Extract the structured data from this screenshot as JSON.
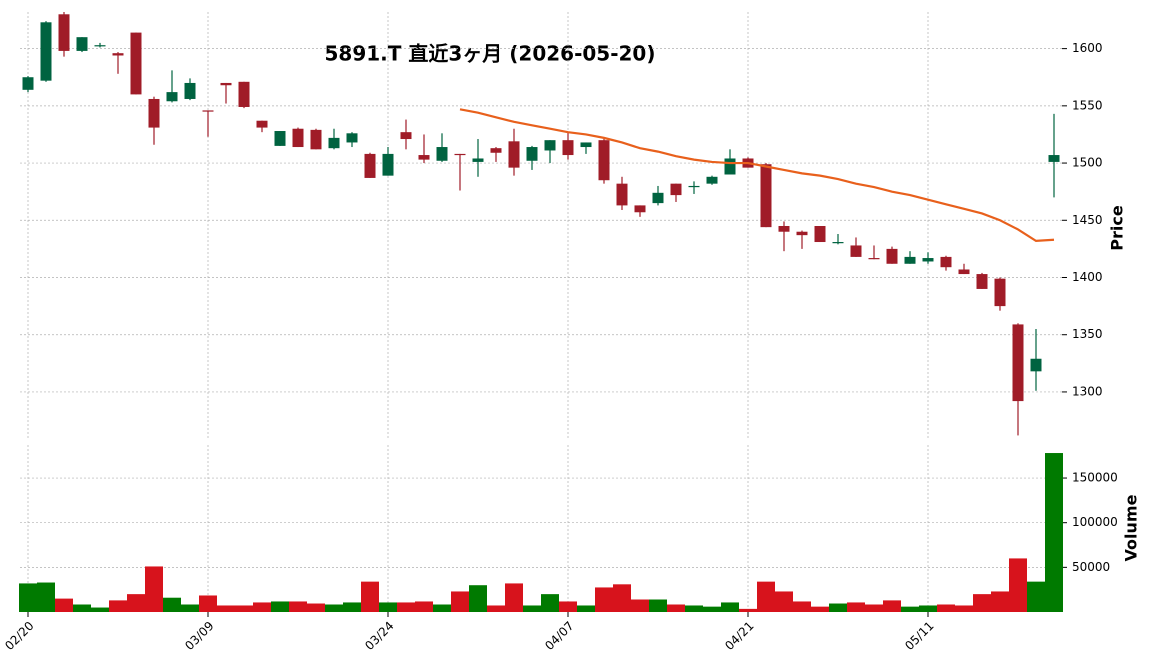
{
  "chart_data": {
    "type": "candlestick",
    "title": "5891.T  直近3ヶ月 (2026-05-20)",
    "ylabel": "Price",
    "volume_label": "Volume",
    "categories": [
      "02/20",
      null,
      null,
      null,
      null,
      null,
      null,
      null,
      null,
      null,
      "03/09",
      null,
      null,
      null,
      null,
      null,
      null,
      null,
      null,
      null,
      "03/24",
      null,
      null,
      null,
      null,
      null,
      null,
      null,
      null,
      null,
      "04/07",
      null,
      null,
      null,
      null,
      null,
      null,
      null,
      null,
      null,
      "04/21",
      null,
      null,
      null,
      null,
      null,
      null,
      null,
      null,
      null,
      "05/11",
      null,
      null,
      null,
      null,
      null,
      null,
      null
    ],
    "open": [
      1564,
      1572,
      1630,
      1598,
      1602,
      1596,
      1614,
      1556,
      1554,
      1556,
      1546,
      1570,
      1571,
      1537,
      1515,
      1530,
      1529,
      1513,
      1518,
      1508,
      1489,
      1527,
      1507,
      1502,
      1508,
      1501,
      1513,
      1519,
      1502,
      1511,
      1520,
      1514,
      1520,
      1482,
      1463,
      1465,
      1482,
      1479,
      1482,
      1490,
      1504,
      1499,
      1445,
      1440,
      1445,
      1430,
      1428,
      1417,
      1425,
      1412,
      1414,
      1418,
      1407,
      1403,
      1399,
      1359,
      1318,
      1501
    ],
    "high": [
      1576,
      1624,
      1632,
      1610,
      1605,
      1597,
      1614,
      1558,
      1581,
      1574,
      1546,
      1570,
      1571,
      1537,
      1528,
      1531,
      1530,
      1530,
      1527,
      1509,
      1514,
      1538,
      1525,
      1526,
      1508,
      1521,
      1514,
      1530,
      1515,
      1520,
      1527,
      1518,
      1521,
      1488,
      1463,
      1480,
      1482,
      1484,
      1489,
      1512,
      1505,
      1500,
      1449,
      1441,
      1445,
      1438,
      1435,
      1428,
      1427,
      1423,
      1422,
      1419,
      1412,
      1404,
      1400,
      1360,
      1355,
      1543
    ],
    "low": [
      1562,
      1571,
      1593,
      1597,
      1601,
      1578,
      1560,
      1516,
      1553,
      1555,
      1523,
      1552,
      1548,
      1527,
      1515,
      1514,
      1512,
      1512,
      1514,
      1487,
      1489,
      1512,
      1500,
      1501,
      1476,
      1488,
      1501,
      1489,
      1494,
      1500,
      1503,
      1508,
      1482,
      1459,
      1453,
      1463,
      1466,
      1473,
      1481,
      1490,
      1496,
      1444,
      1423,
      1425,
      1431,
      1429,
      1418,
      1416,
      1412,
      1412,
      1412,
      1406,
      1403,
      1390,
      1371,
      1262,
      1301,
      1470
    ],
    "close": [
      1575,
      1623,
      1598,
      1610,
      1603,
      1594,
      1560,
      1531,
      1562,
      1570,
      1545,
      1568,
      1549,
      1531,
      1528,
      1514,
      1512,
      1522,
      1526,
      1487,
      1508,
      1521,
      1503,
      1514,
      1507,
      1504,
      1509,
      1496,
      1514,
      1520,
      1507,
      1518,
      1485,
      1463,
      1457,
      1474,
      1472,
      1480,
      1488,
      1504,
      1496,
      1444,
      1440,
      1437,
      1431,
      1431,
      1418,
      1416,
      1412,
      1418,
      1417,
      1409,
      1403,
      1390,
      1375,
      1292,
      1329,
      1507
    ],
    "volume": [
      32000,
      33000,
      15000,
      8400,
      5000,
      13000,
      20000,
      51000,
      16000,
      8400,
      18500,
      7300,
      7300,
      10700,
      11800,
      11800,
      9500,
      8400,
      10700,
      34000,
      10700,
      10700,
      11800,
      8400,
      23000,
      30000,
      7300,
      32000,
      7300,
      20000,
      11800,
      7300,
      27500,
      31000,
      14000,
      14000,
      8400,
      7300,
      6000,
      10700,
      3500,
      34000,
      23000,
      11800,
      6000,
      9500,
      10700,
      8400,
      13000,
      6000,
      7300,
      8400,
      7300,
      20000,
      23000,
      60000,
      34000,
      178000
    ],
    "ma": {
      "color": "#e8601c",
      "values": [
        null,
        null,
        null,
        null,
        null,
        null,
        null,
        null,
        null,
        null,
        null,
        null,
        null,
        null,
        null,
        null,
        null,
        null,
        null,
        null,
        null,
        null,
        null,
        null,
        1547,
        1544,
        1540,
        1536,
        1533,
        1530,
        1527,
        1525,
        1522,
        1518,
        1513,
        1510,
        1506,
        1503,
        1501,
        1500,
        1500,
        1497,
        1494,
        1491,
        1489,
        1486,
        1482,
        1479,
        1475,
        1472,
        1468,
        1464,
        1460,
        1456,
        1450,
        1442,
        1432,
        1433
      ]
    },
    "up_color": "#006340",
    "down_color": "#a01c28",
    "volume_up_color": "#007a00",
    "volume_down_color": "#d7131c",
    "ylim": [
      1258,
      1632
    ],
    "yticks": [
      1300,
      1350,
      1400,
      1450,
      1500,
      1550,
      1600
    ],
    "volume_ylim": [
      0,
      187000
    ],
    "volume_yticks": [
      50000,
      100000,
      150000
    ],
    "grid": true
  }
}
